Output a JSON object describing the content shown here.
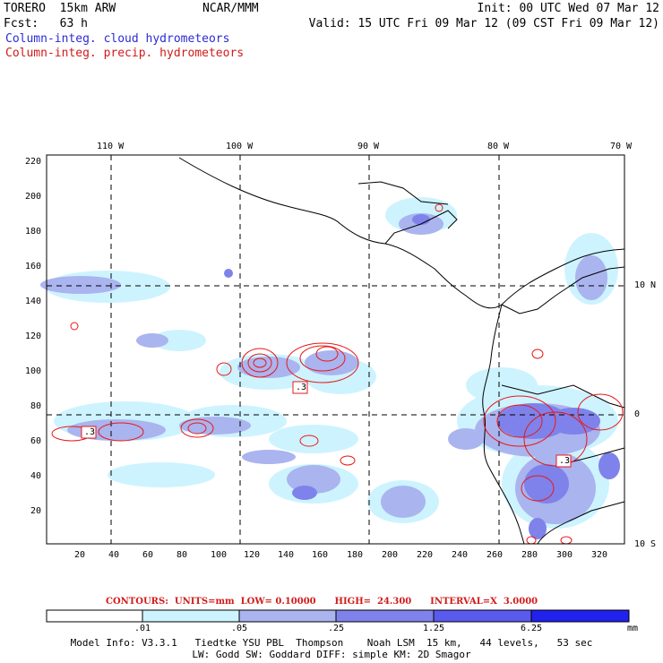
{
  "header": {
    "model": "TORERO  15km ARW",
    "org": "NCAR/MMM",
    "init": "Init: 00 UTC Wed 07 Mar 12",
    "fcst": "Fcst:   63 h",
    "valid": "Valid: 15 UTC Fri 09 Mar 12 (09 CST Fri 09 Mar 12)",
    "field_cloud": "Column-integ. cloud hydrometeors",
    "field_precip": "Column-integ. precip. hydrometeors"
  },
  "colors": {
    "cloud_text": "#2b2bd6",
    "precip_text": "#d11a1a",
    "shade_1": "#cdf3ff",
    "shade_2": "#aab4ee",
    "shade_3": "#7f82ea",
    "shade_4": "#5a5aee",
    "shade_5": "#2222ee",
    "contour": "#e81818"
  },
  "map": {
    "top_axis_labels": [
      "110 W",
      "100 W",
      "90 W",
      "80 W",
      "70 W"
    ],
    "right_axis_labels": [
      "10 N",
      "0",
      "10 S"
    ],
    "left_axis_labels": [
      "220",
      "200",
      "180",
      "160",
      "140",
      "120",
      "100",
      "80",
      "60",
      "40",
      "20"
    ],
    "bottom_axis_labels": [
      "20",
      "40",
      "60",
      "80",
      "100",
      "120",
      "140",
      "160",
      "180",
      "200",
      "220",
      "240",
      "260",
      "280",
      "300",
      "320"
    ],
    "contour_labels": [
      ".3",
      ".3",
      ".3"
    ]
  },
  "contour_info": "CONTOURS:  UNITS=mm  LOW= 0.10000      HIGH=  24.300      INTERVAL=X  3.0000",
  "colorbar": {
    "labels": [
      ".01",
      ".05",
      ".25",
      "1.25",
      "6.25"
    ],
    "unit": "mm"
  },
  "footer": {
    "line1": "Model Info: V3.3.1   Tiedtke YSU PBL  Thompson    Noah LSM  15 km,   44 levels,   53 sec",
    "line2": "LW: Godd SW: Goddard DIFF: simple KM: 2D Smagor"
  }
}
